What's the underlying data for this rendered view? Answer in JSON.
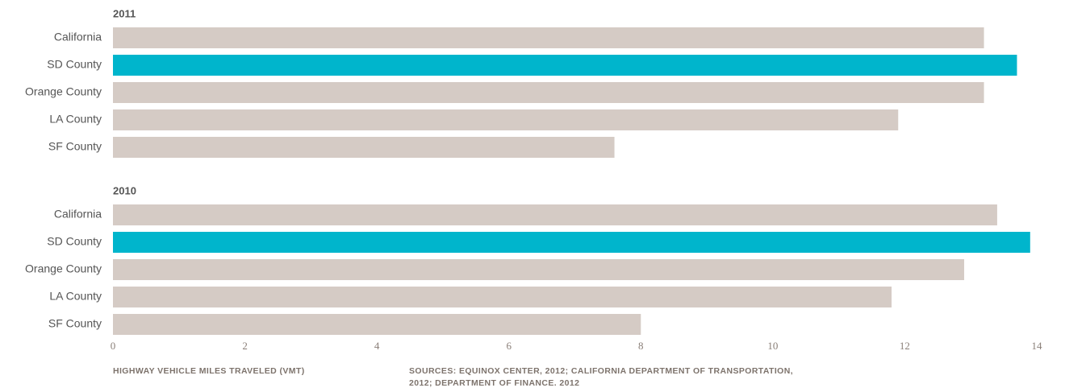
{
  "chart_data": {
    "type": "bar",
    "orientation": "horizontal",
    "groups": [
      {
        "name": "2011",
        "categories": [
          "California",
          "SD County",
          "Orange County",
          "LA County",
          "SF County"
        ],
        "values": [
          13.2,
          13.7,
          13.2,
          11.9,
          7.6
        ],
        "colors": [
          "#d5cbc5",
          "#00b5cc",
          "#d5cbc5",
          "#d5cbc5",
          "#d5cbc5"
        ]
      },
      {
        "name": "2010",
        "categories": [
          "California",
          "SD County",
          "Orange County",
          "LA County",
          "SF County"
        ],
        "values": [
          13.4,
          13.9,
          12.9,
          11.8,
          8.0
        ],
        "colors": [
          "#d5cbc5",
          "#00b5cc",
          "#d5cbc5",
          "#d5cbc5",
          "#d5cbc5"
        ]
      }
    ],
    "xlim": [
      0,
      14
    ],
    "xticks": [
      0,
      2,
      4,
      6,
      8,
      10,
      12,
      14
    ],
    "xlabel": "HIGHWAY VEHICLE MILES TRAVELED (VMT)",
    "source": "SOURCES: EQUINOX CENTER, 2012; CALIFORNIA DEPARTMENT OF TRANSPORTATION, 2012; DEPARTMENT OF FINANCE. 2012",
    "grid": false
  }
}
